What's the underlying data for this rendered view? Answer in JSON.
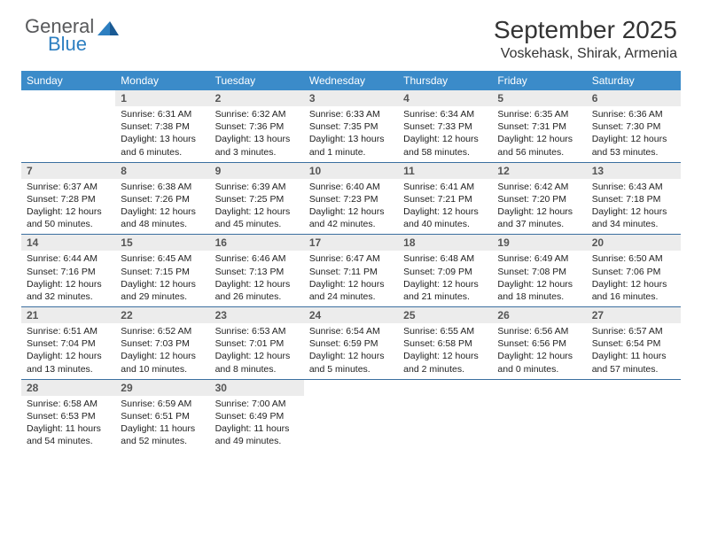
{
  "logo": {
    "word1": "General",
    "word2": "Blue",
    "word1_color": "#58595b",
    "word2_color": "#2d7fc1"
  },
  "title": "September 2025",
  "location": "Voskehask, Shirak, Armenia",
  "colors": {
    "header_bg": "#3b8bc9",
    "header_text": "#ffffff",
    "daynum_bg": "#ececec",
    "week_border": "#3b6fa0",
    "body_text": "#222222"
  },
  "day_names": [
    "Sunday",
    "Monday",
    "Tuesday",
    "Wednesday",
    "Thursday",
    "Friday",
    "Saturday"
  ],
  "weeks": [
    [
      {
        "n": "",
        "sr": "",
        "ss": "",
        "dl": ""
      },
      {
        "n": "1",
        "sr": "Sunrise: 6:31 AM",
        "ss": "Sunset: 7:38 PM",
        "dl": "Daylight: 13 hours and 6 minutes."
      },
      {
        "n": "2",
        "sr": "Sunrise: 6:32 AM",
        "ss": "Sunset: 7:36 PM",
        "dl": "Daylight: 13 hours and 3 minutes."
      },
      {
        "n": "3",
        "sr": "Sunrise: 6:33 AM",
        "ss": "Sunset: 7:35 PM",
        "dl": "Daylight: 13 hours and 1 minute."
      },
      {
        "n": "4",
        "sr": "Sunrise: 6:34 AM",
        "ss": "Sunset: 7:33 PM",
        "dl": "Daylight: 12 hours and 58 minutes."
      },
      {
        "n": "5",
        "sr": "Sunrise: 6:35 AM",
        "ss": "Sunset: 7:31 PM",
        "dl": "Daylight: 12 hours and 56 minutes."
      },
      {
        "n": "6",
        "sr": "Sunrise: 6:36 AM",
        "ss": "Sunset: 7:30 PM",
        "dl": "Daylight: 12 hours and 53 minutes."
      }
    ],
    [
      {
        "n": "7",
        "sr": "Sunrise: 6:37 AM",
        "ss": "Sunset: 7:28 PM",
        "dl": "Daylight: 12 hours and 50 minutes."
      },
      {
        "n": "8",
        "sr": "Sunrise: 6:38 AM",
        "ss": "Sunset: 7:26 PM",
        "dl": "Daylight: 12 hours and 48 minutes."
      },
      {
        "n": "9",
        "sr": "Sunrise: 6:39 AM",
        "ss": "Sunset: 7:25 PM",
        "dl": "Daylight: 12 hours and 45 minutes."
      },
      {
        "n": "10",
        "sr": "Sunrise: 6:40 AM",
        "ss": "Sunset: 7:23 PM",
        "dl": "Daylight: 12 hours and 42 minutes."
      },
      {
        "n": "11",
        "sr": "Sunrise: 6:41 AM",
        "ss": "Sunset: 7:21 PM",
        "dl": "Daylight: 12 hours and 40 minutes."
      },
      {
        "n": "12",
        "sr": "Sunrise: 6:42 AM",
        "ss": "Sunset: 7:20 PM",
        "dl": "Daylight: 12 hours and 37 minutes."
      },
      {
        "n": "13",
        "sr": "Sunrise: 6:43 AM",
        "ss": "Sunset: 7:18 PM",
        "dl": "Daylight: 12 hours and 34 minutes."
      }
    ],
    [
      {
        "n": "14",
        "sr": "Sunrise: 6:44 AM",
        "ss": "Sunset: 7:16 PM",
        "dl": "Daylight: 12 hours and 32 minutes."
      },
      {
        "n": "15",
        "sr": "Sunrise: 6:45 AM",
        "ss": "Sunset: 7:15 PM",
        "dl": "Daylight: 12 hours and 29 minutes."
      },
      {
        "n": "16",
        "sr": "Sunrise: 6:46 AM",
        "ss": "Sunset: 7:13 PM",
        "dl": "Daylight: 12 hours and 26 minutes."
      },
      {
        "n": "17",
        "sr": "Sunrise: 6:47 AM",
        "ss": "Sunset: 7:11 PM",
        "dl": "Daylight: 12 hours and 24 minutes."
      },
      {
        "n": "18",
        "sr": "Sunrise: 6:48 AM",
        "ss": "Sunset: 7:09 PM",
        "dl": "Daylight: 12 hours and 21 minutes."
      },
      {
        "n": "19",
        "sr": "Sunrise: 6:49 AM",
        "ss": "Sunset: 7:08 PM",
        "dl": "Daylight: 12 hours and 18 minutes."
      },
      {
        "n": "20",
        "sr": "Sunrise: 6:50 AM",
        "ss": "Sunset: 7:06 PM",
        "dl": "Daylight: 12 hours and 16 minutes."
      }
    ],
    [
      {
        "n": "21",
        "sr": "Sunrise: 6:51 AM",
        "ss": "Sunset: 7:04 PM",
        "dl": "Daylight: 12 hours and 13 minutes."
      },
      {
        "n": "22",
        "sr": "Sunrise: 6:52 AM",
        "ss": "Sunset: 7:03 PM",
        "dl": "Daylight: 12 hours and 10 minutes."
      },
      {
        "n": "23",
        "sr": "Sunrise: 6:53 AM",
        "ss": "Sunset: 7:01 PM",
        "dl": "Daylight: 12 hours and 8 minutes."
      },
      {
        "n": "24",
        "sr": "Sunrise: 6:54 AM",
        "ss": "Sunset: 6:59 PM",
        "dl": "Daylight: 12 hours and 5 minutes."
      },
      {
        "n": "25",
        "sr": "Sunrise: 6:55 AM",
        "ss": "Sunset: 6:58 PM",
        "dl": "Daylight: 12 hours and 2 minutes."
      },
      {
        "n": "26",
        "sr": "Sunrise: 6:56 AM",
        "ss": "Sunset: 6:56 PM",
        "dl": "Daylight: 12 hours and 0 minutes."
      },
      {
        "n": "27",
        "sr": "Sunrise: 6:57 AM",
        "ss": "Sunset: 6:54 PM",
        "dl": "Daylight: 11 hours and 57 minutes."
      }
    ],
    [
      {
        "n": "28",
        "sr": "Sunrise: 6:58 AM",
        "ss": "Sunset: 6:53 PM",
        "dl": "Daylight: 11 hours and 54 minutes."
      },
      {
        "n": "29",
        "sr": "Sunrise: 6:59 AM",
        "ss": "Sunset: 6:51 PM",
        "dl": "Daylight: 11 hours and 52 minutes."
      },
      {
        "n": "30",
        "sr": "Sunrise: 7:00 AM",
        "ss": "Sunset: 6:49 PM",
        "dl": "Daylight: 11 hours and 49 minutes."
      },
      {
        "n": "",
        "sr": "",
        "ss": "",
        "dl": ""
      },
      {
        "n": "",
        "sr": "",
        "ss": "",
        "dl": ""
      },
      {
        "n": "",
        "sr": "",
        "ss": "",
        "dl": ""
      },
      {
        "n": "",
        "sr": "",
        "ss": "",
        "dl": ""
      }
    ]
  ]
}
